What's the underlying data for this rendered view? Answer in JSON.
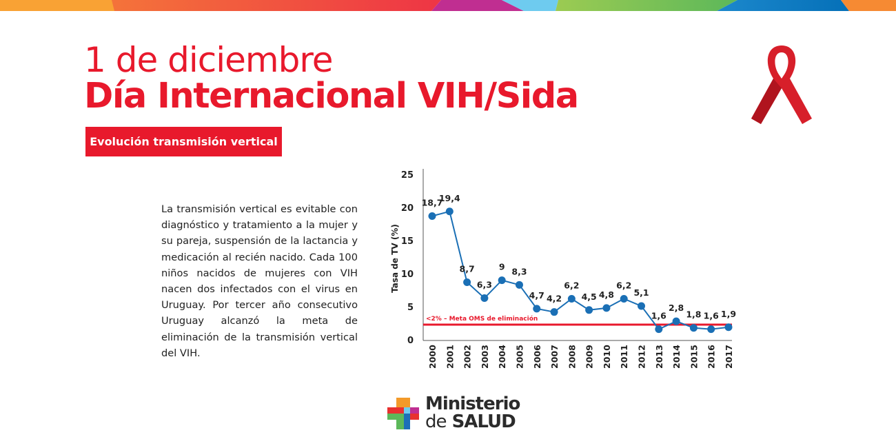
{
  "header": {
    "line1": "1 de diciembre",
    "line2": "Día Internacional VIH/Sida",
    "badge": "Evolución transmisión vertical"
  },
  "body_text": "La transmisión vertical es evitable con diagnóstico y tratamiento a la mujer y su pareja, suspensión de la lactancia y medicación al recién nacido. Cada 100 niños nacidos de mujeres con VIH nacen dos infectados con el virus en Uruguay. Por tercer año consecutivo Uruguay alcanzó la meta de eliminación de la transmisión vertical del VIH.",
  "logo": {
    "line1": "Ministerio",
    "line2a": "de",
    "line2b": "SALUD"
  },
  "colors": {
    "accent": "#e8192c",
    "series": "#1a6fb5"
  },
  "chart_data": {
    "type": "line",
    "ylabel": "Tasa de TV (%)",
    "xlabel": "",
    "ylim": [
      0,
      25
    ],
    "yticks": [
      0,
      5,
      10,
      15,
      20,
      25
    ],
    "categories": [
      "2000",
      "2001",
      "2002",
      "2003",
      "2004",
      "2005",
      "2006",
      "2007",
      "2008",
      "2009",
      "2010",
      "2011",
      "2012",
      "2013",
      "2014",
      "2015",
      "2016",
      "2017"
    ],
    "values": [
      18.7,
      19.4,
      8.7,
      6.3,
      9,
      8.3,
      4.7,
      4.2,
      6.2,
      4.5,
      4.8,
      6.2,
      5.1,
      1.6,
      2.8,
      1.8,
      1.6,
      1.9
    ],
    "labels": [
      "18,7",
      "19,4",
      "8,7",
      "6,3",
      "9",
      "8,3",
      "4,7",
      "4,2",
      "6,2",
      "4,5",
      "4,8",
      "6,2",
      "5,1",
      "1,6",
      "2,8",
      "1,8",
      "1,6",
      "1,9"
    ],
    "reference_line": {
      "value": 2,
      "label": "<2% – Meta OMS de eliminación",
      "color": "#e8192c"
    },
    "grid": false
  }
}
